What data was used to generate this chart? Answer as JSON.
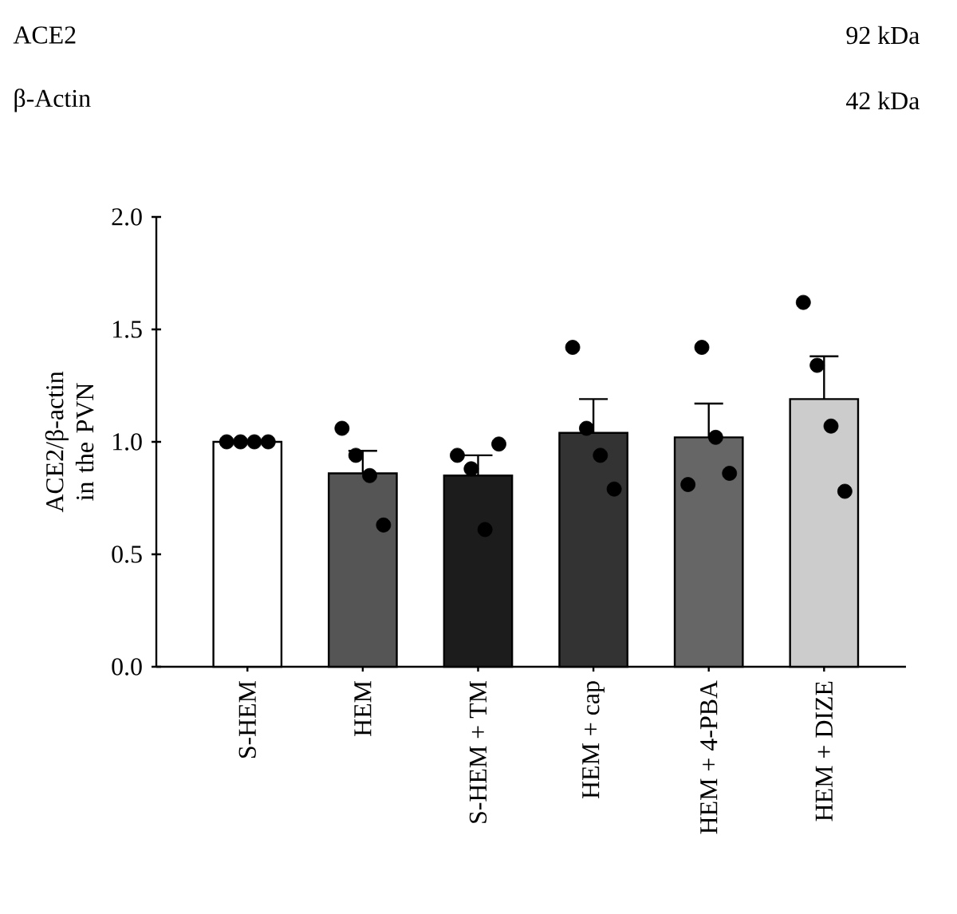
{
  "chart_data": {
    "type": "bar",
    "ylabel": "ACE2/β-actin in the PVN",
    "categories": [
      "S-HEM",
      "HEM",
      "S-HEM + TM",
      "HEM + cap",
      "HEM + 4-PBA",
      "HEM + DIZE"
    ],
    "series": [
      {
        "values": [
          1.0,
          0.86,
          0.85,
          1.04,
          1.02,
          1.19
        ],
        "colors": [
          "#ffffff",
          "#555555",
          "#1c1c1c",
          "#333333",
          "#666666",
          "#cccccc"
        ],
        "errors": [
          null,
          0.1,
          0.09,
          0.15,
          0.15,
          0.19
        ]
      },
      {
        "type": "scatter",
        "color": "#000000",
        "marker": "circle",
        "x": [
          "S-HEM",
          "S-HEM",
          "S-HEM",
          "S-HEM",
          "HEM",
          "HEM",
          "HEM",
          "HEM",
          "S-HEM + TM",
          "S-HEM + TM",
          "S-HEM + TM",
          "S-HEM + TM",
          "HEM + cap",
          "HEM + cap",
          "HEM + cap",
          "HEM + cap",
          "HEM + 4-PBA",
          "HEM + 4-PBA",
          "HEM + 4-PBA",
          "HEM + 4-PBA",
          "HEM + DIZE",
          "HEM + DIZE",
          "HEM + DIZE",
          "HEM + DIZE"
        ],
        "values": [
          1.0,
          1.0,
          1.0,
          1.0,
          1.06,
          0.94,
          0.85,
          0.63,
          0.94,
          0.88,
          0.61,
          0.99,
          1.42,
          1.06,
          0.94,
          0.79,
          0.81,
          1.42,
          1.02,
          0.86,
          1.62,
          1.34,
          1.07,
          0.78
        ]
      }
    ],
    "ylim": [
      0,
      2.0
    ],
    "yticks": [
      {
        "value": 0,
        "label": "0.0"
      },
      {
        "value": 0.5,
        "label": "0.5"
      },
      {
        "value": 1.0,
        "label": "1.0"
      },
      {
        "value": 1.5,
        "label": "1.5"
      },
      {
        "value": 2.0,
        "label": "2.0"
      }
    ],
    "annotations": [
      "ACE2",
      "92 kDa",
      "β-Actin",
      "42 kDa"
    ]
  }
}
